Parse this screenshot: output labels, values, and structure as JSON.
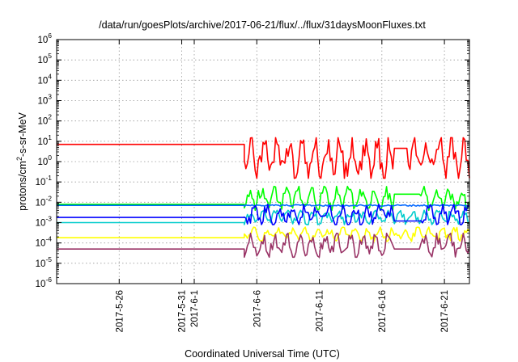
{
  "chart_data": {
    "type": "line",
    "title": "/data/run/goesPlots/archive/2017-06-21/flux/../flux/31daysMoonFluxes.txt",
    "xlabel": "Coordinated Universal Time (UTC)",
    "ylabel_main": "protons/cm",
    "ylabel_sup": "2",
    "ylabel_rest": "-s-sr-MeV",
    "yscale": "log",
    "ylim": [
      1e-06,
      1000000.0
    ],
    "xlim": [
      "2017-05-21",
      "2017-06-23"
    ],
    "grid": true,
    "y_ticks": [
      {
        "base": "10",
        "exp": "-6"
      },
      {
        "base": "10",
        "exp": "-5"
      },
      {
        "base": "10",
        "exp": "-4"
      },
      {
        "base": "10",
        "exp": "-3"
      },
      {
        "base": "10",
        "exp": "-2"
      },
      {
        "base": "10",
        "exp": "-1"
      },
      {
        "base": "10",
        "exp": "0"
      },
      {
        "base": "10",
        "exp": "1"
      },
      {
        "base": "10",
        "exp": "2"
      },
      {
        "base": "10",
        "exp": "3"
      },
      {
        "base": "10",
        "exp": "4"
      },
      {
        "base": "10",
        "exp": "5"
      },
      {
        "base": "10",
        "exp": "6"
      }
    ],
    "x_ticks": [
      "2017-5-26",
      "2017-5-31",
      "2017-6-1",
      "2017-6-6",
      "2017-6-11",
      "2017-6-16",
      "2017-6-21"
    ],
    "x_tick_dates": [
      "2017-05-26",
      "2017-05-31",
      "2017-06-01",
      "2017-06-06",
      "2017-06-11",
      "2017-06-16",
      "2017-06-21"
    ],
    "series": [
      {
        "color": "#ff0000",
        "baseline": 7,
        "variable_start": "2017-06-05",
        "range": [
          0.15,
          15
        ],
        "gap": [
          "2017-06-17",
          "2017-06-18"
        ],
        "gap_value": 4.5
      },
      {
        "color": "#00ff00",
        "baseline": 0.008,
        "variable_start": "2017-06-05",
        "range": [
          0.004,
          0.06
        ],
        "gap": [
          "2017-06-17",
          "2017-06-19"
        ],
        "gap_value": 0.025
      },
      {
        "color": "#0066ff",
        "baseline": 0.007,
        "variable_start": "2017-06-05",
        "range": [
          0.0055,
          0.0085
        ],
        "gap": [],
        "gap_value": null
      },
      {
        "color": "#00cccc",
        "baseline": 0.001,
        "variable_start": "2017-06-05",
        "range": [
          0.0008,
          0.004
        ],
        "gap": [],
        "gap_value": null
      },
      {
        "color": "#0000ff",
        "baseline": 0.0018,
        "variable_start": "2017-06-05",
        "range": [
          0.0008,
          0.008
        ],
        "gap": [
          "2017-06-17",
          "2017-06-19"
        ],
        "gap_value": 0.0012
      },
      {
        "color": "#ffff00",
        "baseline": 0.00018,
        "variable_start": "2017-06-05",
        "range": [
          0.00012,
          0.0006
        ],
        "gap": [],
        "gap_value": null
      },
      {
        "color": "#993366",
        "baseline": 5e-05,
        "variable_start": "2017-06-05",
        "range": [
          2e-05,
          0.0003
        ],
        "gap": [
          "2017-06-17",
          "2017-06-19"
        ],
        "gap_value": 5e-05
      }
    ]
  }
}
